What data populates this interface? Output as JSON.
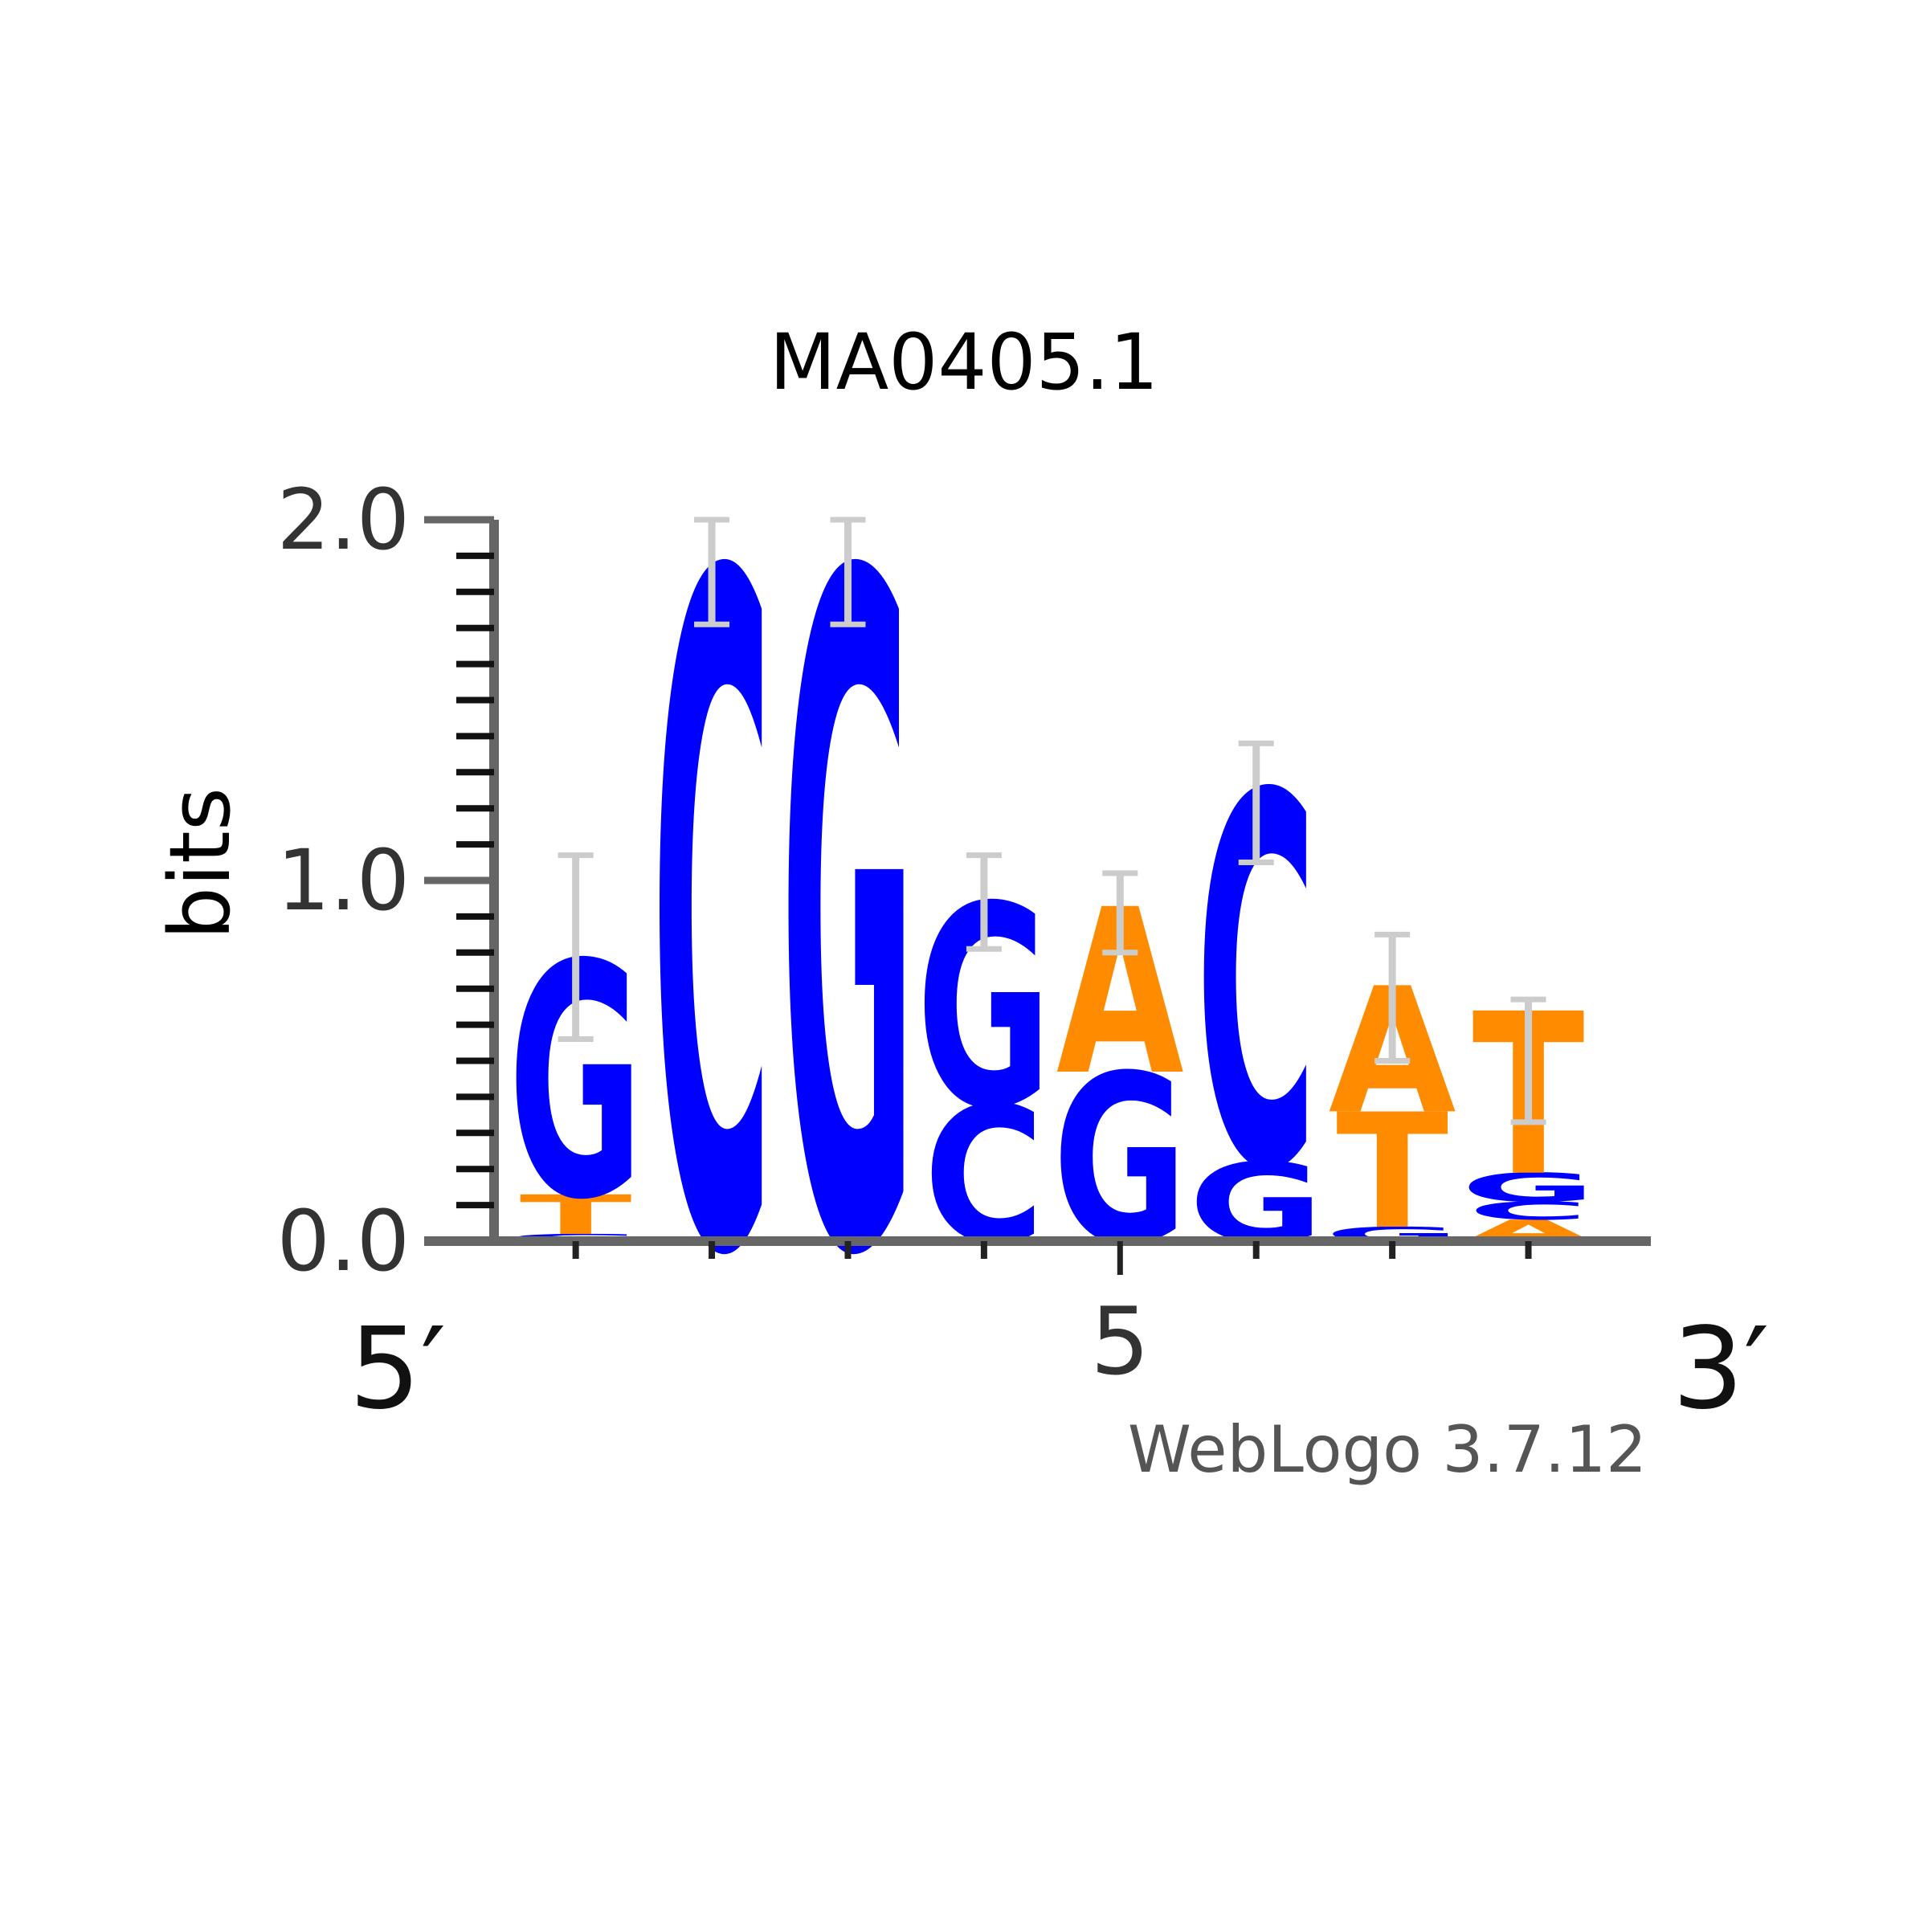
{
  "chart_data": {
    "type": "sequence-logo",
    "title": "MA0405.1",
    "ylabel": "bits",
    "ylim": [
      0,
      2
    ],
    "y_ticks": [
      "0.0",
      "1.0",
      "2.0"
    ],
    "x_positions": [
      1,
      2,
      3,
      4,
      5,
      6,
      7,
      8
    ],
    "x_tick_label": "5",
    "x_tick_value": 5,
    "left_end_label": "5′",
    "right_end_label": "3′",
    "footer": "WebLogo 3.7.12",
    "colors": {
      "G": "#0000ff",
      "C": "#0000ff",
      "A": "#ff8c00",
      "T": "#ff8c00",
      "errorbar": "#cccccc",
      "axis": "#666666"
    },
    "columns": [
      {
        "pos": 1,
        "error": [
          0.56,
          1.07
        ],
        "letters": [
          {
            "letter": "G",
            "height": 0.02
          },
          {
            "letter": "T",
            "height": 0.11
          },
          {
            "letter": "G",
            "height": 0.65
          }
        ]
      },
      {
        "pos": 2,
        "error": [
          1.71,
          2.0
        ],
        "letters": [
          {
            "letter": "C",
            "height": 1.86
          }
        ]
      },
      {
        "pos": 3,
        "error": [
          1.71,
          2.0
        ],
        "letters": [
          {
            "letter": "G",
            "height": 1.86
          }
        ]
      },
      {
        "pos": 4,
        "error": [
          0.81,
          1.07
        ],
        "letters": [
          {
            "letter": "C",
            "height": 0.38
          },
          {
            "letter": "G",
            "height": 0.56
          }
        ]
      },
      {
        "pos": 5,
        "error": [
          0.8,
          1.02
        ],
        "letters": [
          {
            "letter": "G",
            "height": 0.47
          },
          {
            "letter": "A",
            "height": 0.46
          }
        ]
      },
      {
        "pos": 6,
        "error": [
          1.05,
          1.38
        ],
        "letters": [
          {
            "letter": "G",
            "height": 0.22
          },
          {
            "letter": "C",
            "height": 1.03
          }
        ]
      },
      {
        "pos": 7,
        "error": [
          0.5,
          0.85
        ],
        "letters": [
          {
            "letter": "G",
            "height": 0.04
          },
          {
            "letter": "T",
            "height": 0.32
          },
          {
            "letter": "A",
            "height": 0.35
          }
        ]
      },
      {
        "pos": 8,
        "error": [
          0.33,
          0.67
        ],
        "letters": [
          {
            "letter": "A",
            "height": 0.06
          },
          {
            "letter": "C",
            "height": 0.05
          },
          {
            "letter": "G",
            "height": 0.08
          },
          {
            "letter": "T",
            "height": 0.45
          }
        ]
      }
    ]
  }
}
